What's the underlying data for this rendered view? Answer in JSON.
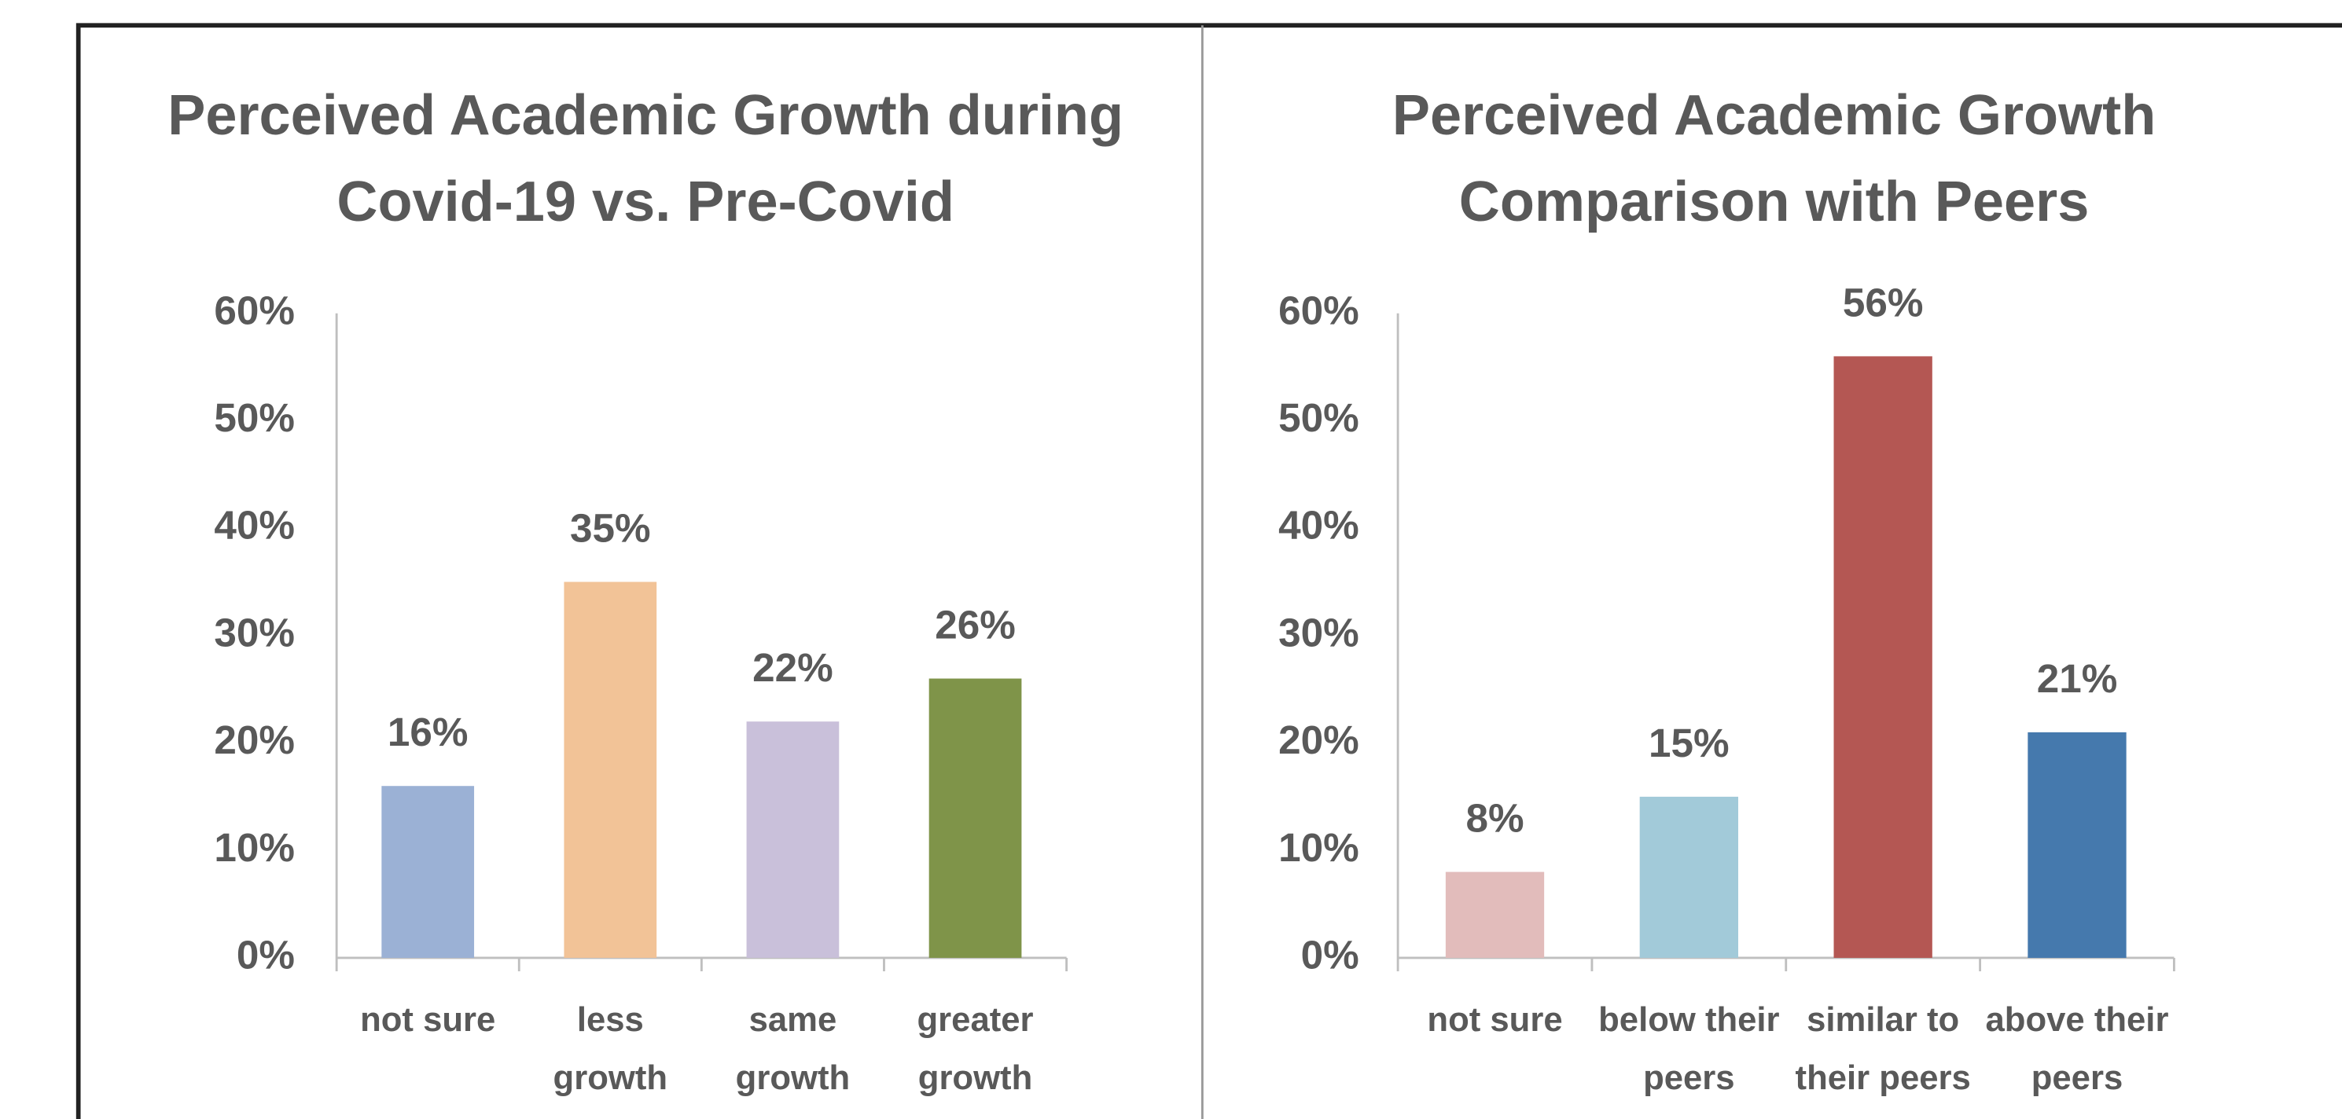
{
  "chart_data": [
    {
      "type": "bar",
      "title": [
        "Perceived Academic Growth during",
        "Covid-19 vs. Pre-Covid"
      ],
      "categories": [
        [
          "not sure"
        ],
        [
          "less",
          "growth"
        ],
        [
          "same",
          "growth"
        ],
        [
          "greater",
          "growth"
        ]
      ],
      "values": [
        16,
        35,
        22,
        26
      ],
      "value_labels": [
        "16%",
        "35%",
        "22%",
        "26%"
      ],
      "colors": [
        "#9bb1d5",
        "#f2c397",
        "#c9c0da",
        "#7f9449"
      ],
      "ylim": [
        0,
        60
      ],
      "yticks": [
        {
          "value": 0,
          "label": "0%"
        },
        {
          "value": 10,
          "label": "10%"
        },
        {
          "value": 20,
          "label": "20%"
        },
        {
          "value": 30,
          "label": "30%"
        },
        {
          "value": 40,
          "label": "40%"
        },
        {
          "value": 50,
          "label": "50%"
        },
        {
          "value": 60,
          "label": "60%"
        }
      ],
      "grid": false
    },
    {
      "type": "bar",
      "title": [
        "Perceived Academic Growth",
        "Comparison with Peers"
      ],
      "categories": [
        [
          "not sure"
        ],
        [
          "below their",
          "peers"
        ],
        [
          "similar to",
          "their peers"
        ],
        [
          "above their",
          "peers"
        ]
      ],
      "values": [
        8,
        15,
        56,
        21
      ],
      "value_labels": [
        "8%",
        "15%",
        "56%",
        "21%"
      ],
      "colors": [
        "#e2bcbb",
        "#a2cad9",
        "#b45753",
        "#4579ad"
      ],
      "ylim": [
        0,
        60
      ],
      "yticks": [
        {
          "value": 0,
          "label": "0%"
        },
        {
          "value": 10,
          "label": "10%"
        },
        {
          "value": 20,
          "label": "20%"
        },
        {
          "value": 30,
          "label": "30%"
        },
        {
          "value": 40,
          "label": "40%"
        },
        {
          "value": 50,
          "label": "50%"
        },
        {
          "value": 60,
          "label": "60%"
        }
      ],
      "grid": false
    }
  ]
}
